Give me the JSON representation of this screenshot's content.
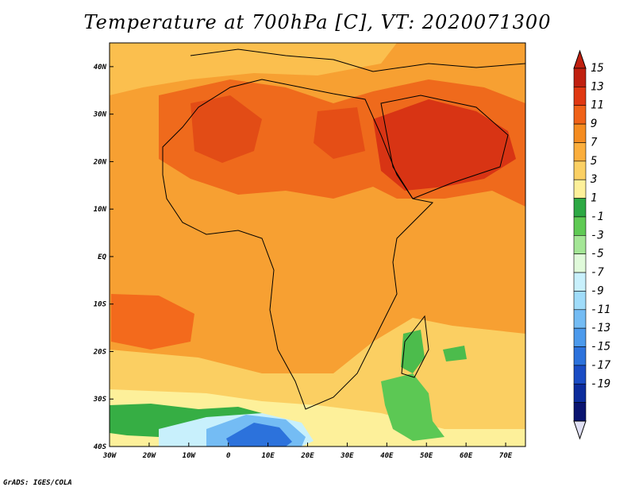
{
  "title": "Temperature at 700hPa [C], VT: 2020071300",
  "footer": "GrADS: IGES/COLA",
  "map": {
    "projection": "latlon",
    "lon_range": [
      -30,
      75
    ],
    "lat_range": [
      -40,
      45
    ],
    "lon_ticks": [
      "30W",
      "20W",
      "10W",
      "0",
      "10E",
      "20E",
      "30E",
      "40E",
      "50E",
      "60E",
      "70E"
    ],
    "lat_ticks": [
      "40S",
      "30S",
      "20S",
      "10S",
      "EQ",
      "10N",
      "20N",
      "30N",
      "40N"
    ]
  },
  "colorbar": {
    "labels": [
      "15",
      "13",
      "11",
      "9",
      "7",
      "5",
      "3",
      "1",
      "-1",
      "-3",
      "-5",
      "-7",
      "-9",
      "-11",
      "-13",
      "-15",
      "-17",
      "-19"
    ],
    "colors": [
      "#c02010",
      "#e03812",
      "#f06218",
      "#f58c20",
      "#fbae3c",
      "#fbd064",
      "#fdf09a",
      "#2da944",
      "#5fca54",
      "#a4e696",
      "#e0fada",
      "#c8f0fc",
      "#a0dcfa",
      "#74bcf4",
      "#4c9aec",
      "#2c72dc",
      "#1a4cc4",
      "#0c2c9c",
      "#0a1470"
    ],
    "open_top_color": "#c02010",
    "open_bottom_color": "#e0e0f4"
  },
  "colors": {
    "land_line": "#000000",
    "background": "#ffffff"
  }
}
